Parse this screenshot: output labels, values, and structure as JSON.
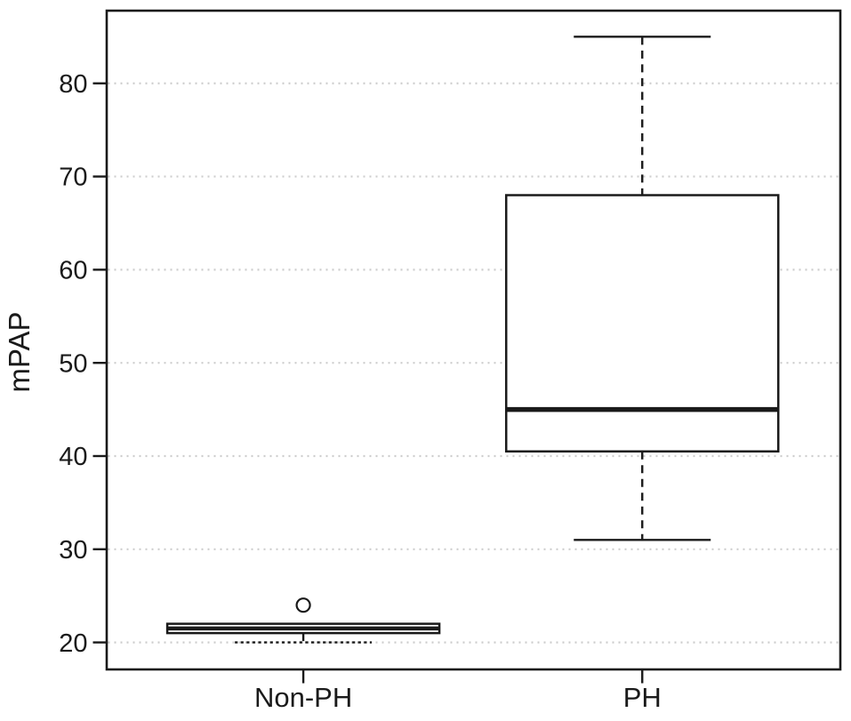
{
  "chart_data": {
    "type": "boxplot",
    "title": "",
    "xlabel": "",
    "ylabel": "mPAP",
    "categories": [
      "Non-PH",
      "PH"
    ],
    "yticks": [
      20,
      30,
      40,
      50,
      60,
      70,
      80
    ],
    "ylim": [
      17.1,
      87.8
    ],
    "grid": "horizontal dotted gridlines at every y tick",
    "legend": "none",
    "series": [
      {
        "label": "Non-PH",
        "min": 20,
        "q1": 21,
        "median": 21.5,
        "q3": 22,
        "max": 22,
        "outliers": [
          24
        ],
        "lower_staple_style": "dotted",
        "upper_whisker_visible": false
      },
      {
        "label": "PH",
        "min": 31,
        "q1": 40.5,
        "median": 45,
        "q3": 68,
        "max": 85,
        "outliers": [],
        "lower_staple_style": "solid",
        "upper_whisker_visible": true
      }
    ],
    "colors": {
      "stroke": "#1a1a1a",
      "grid": "#cdcdcd",
      "box_fill": "#ffffff",
      "background": "#ffffff",
      "text": "#1a1a1a"
    }
  }
}
